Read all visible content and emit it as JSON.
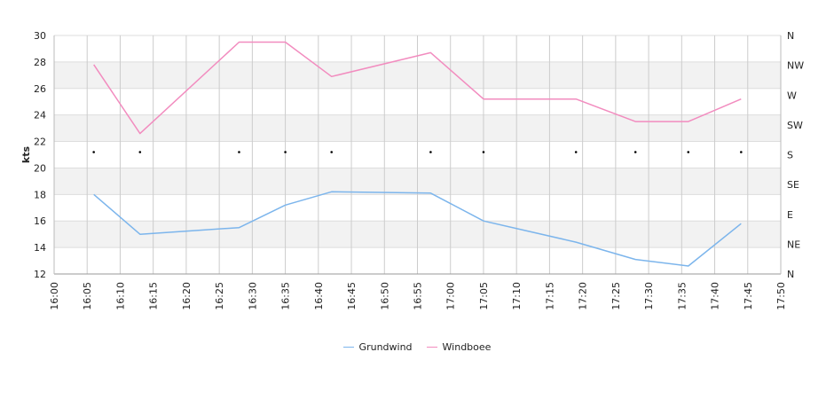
{
  "chart_data": {
    "type": "line",
    "ylabel": "kts",
    "ylim": [
      12,
      30
    ],
    "y_ticks": [
      12,
      14,
      16,
      18,
      20,
      22,
      24,
      26,
      28,
      30
    ],
    "x_ticks": [
      "16:00",
      "16:05",
      "16:10",
      "16:15",
      "16:20",
      "16:25",
      "16:30",
      "16:35",
      "16:40",
      "16:45",
      "16:50",
      "16:55",
      "17:00",
      "17:05",
      "17:10",
      "17:15",
      "17:20",
      "17:25",
      "17:30",
      "17:35",
      "17:40",
      "17:45",
      "17:50"
    ],
    "direction_ticks": [
      "N",
      "NW",
      "W",
      "SW",
      "S",
      "SE",
      "E",
      "NE",
      "N"
    ],
    "grid": true,
    "legend_position": "bottom",
    "x": [
      "16:06",
      "16:13",
      "16:28",
      "16:35",
      "16:42",
      "16:57",
      "17:05",
      "17:19",
      "17:28",
      "17:36",
      "17:44"
    ],
    "series": [
      {
        "name": "Grundwind",
        "color": "#7cb5ec",
        "values": [
          18.0,
          15.0,
          15.5,
          17.2,
          18.2,
          18.1,
          16.0,
          14.4,
          13.1,
          12.6,
          15.8
        ]
      },
      {
        "name": "Windboee",
        "color": "#f28cbf",
        "values": [
          27.8,
          22.6,
          29.5,
          29.5,
          26.9,
          28.7,
          25.2,
          25.2,
          23.5,
          23.5,
          25.2
        ]
      }
    ],
    "direction_markers": [
      "S",
      "S",
      "S",
      "S",
      "S",
      "S",
      "S",
      "S",
      "S",
      "S",
      "S"
    ]
  }
}
